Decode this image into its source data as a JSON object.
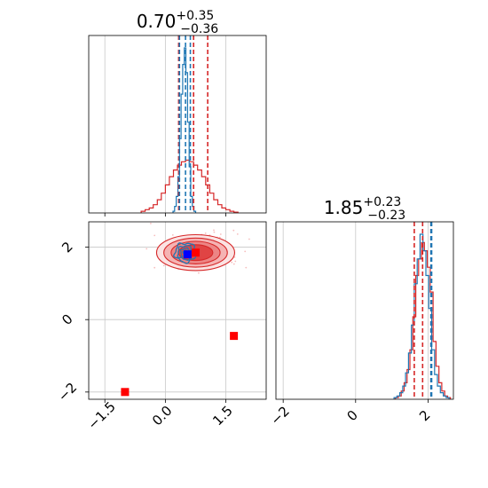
{
  "chart_data": [
    {
      "type": "histogram",
      "panel": "top-left",
      "title": {
        "value": "0.70",
        "plus": "+0.35",
        "minus": "−0.36"
      },
      "xlim": [
        -1.9,
        2.5
      ],
      "xticks": [
        -1.5,
        0.0,
        1.5
      ],
      "x_tick_labels_shown": false,
      "grid": true,
      "series": [
        {
          "color": "#d62728",
          "x": [
            -0.55,
            -0.45,
            -0.35,
            -0.25,
            -0.15,
            -0.05,
            0.05,
            0.15,
            0.25,
            0.35,
            0.45,
            0.55,
            0.65,
            0.75,
            0.85,
            0.95,
            1.05,
            1.15,
            1.25,
            1.35,
            1.45,
            1.55,
            1.65,
            1.75
          ],
          "counts": [
            0.01,
            0.02,
            0.03,
            0.05,
            0.08,
            0.12,
            0.17,
            0.22,
            0.26,
            0.29,
            0.31,
            0.32,
            0.31,
            0.29,
            0.26,
            0.22,
            0.17,
            0.12,
            0.08,
            0.05,
            0.03,
            0.02,
            0.01,
            0.005
          ],
          "quantile_lines": [
            0.33,
            0.7,
            1.05
          ]
        },
        {
          "color": "#1f77b4",
          "x": [
            0.21,
            0.25,
            0.29,
            0.33,
            0.37,
            0.41,
            0.45,
            0.49,
            0.53,
            0.57,
            0.61,
            0.65,
            0.69,
            0.73
          ],
          "counts": [
            0.01,
            0.04,
            0.1,
            0.22,
            0.45,
            0.72,
            0.9,
            1.0,
            0.85,
            0.55,
            0.28,
            0.1,
            0.04,
            0.01
          ],
          "quantile_lines": [
            0.35,
            0.5,
            0.62
          ]
        }
      ]
    },
    {
      "type": "contour-scatter",
      "panel": "bottom-left",
      "xlim": [
        -1.9,
        2.5
      ],
      "ylim": [
        -2.2,
        2.7
      ],
      "xticks": [
        -1.5,
        0.0,
        1.5
      ],
      "xtick_labels": [
        "−1.5",
        "0.0",
        "1.5"
      ],
      "yticks": [
        -2,
        0,
        2
      ],
      "ytick_labels": [
        "−2",
        "0",
        "2"
      ],
      "grid": true,
      "contours": {
        "red": {
          "center": [
            0.75,
            1.85
          ],
          "sigma": [
            0.45,
            0.23
          ],
          "color": "#d62728"
        },
        "blue": {
          "center": [
            0.5,
            1.85
          ],
          "sigma": [
            0.12,
            0.12
          ],
          "color": "#1f77b4"
        }
      },
      "markers": [
        {
          "x": 0.55,
          "y": 1.8,
          "color": "#0000ff",
          "shape": "square"
        },
        {
          "x": 0.75,
          "y": 1.85,
          "color": "#ff0000",
          "shape": "square"
        },
        {
          "x": 1.7,
          "y": -0.45,
          "color": "#ff0000",
          "shape": "square"
        },
        {
          "x": -1.0,
          "y": -2.0,
          "color": "#ff0000",
          "shape": "square"
        }
      ]
    },
    {
      "type": "histogram",
      "panel": "bottom-right",
      "title": {
        "value": "1.85",
        "plus": "+0.23",
        "minus": "−0.23"
      },
      "xlim": [
        -2.2,
        2.7
      ],
      "xticks": [
        -2,
        0,
        2
      ],
      "xtick_labels": [
        "−2",
        "0",
        "2"
      ],
      "grid": true,
      "series": [
        {
          "color": "#d62728",
          "x": [
            1.14,
            1.22,
            1.3,
            1.38,
            1.46,
            1.54,
            1.62,
            1.7,
            1.78,
            1.86,
            1.94,
            2.02,
            2.1,
            2.18,
            2.26,
            2.34,
            2.42,
            2.5,
            2.58
          ],
          "counts": [
            0.01,
            0.02,
            0.05,
            0.1,
            0.18,
            0.3,
            0.5,
            0.75,
            0.85,
            0.95,
            0.9,
            0.8,
            0.65,
            0.35,
            0.2,
            0.1,
            0.05,
            0.02,
            0.01
          ],
          "quantile_lines": [
            1.62,
            1.85,
            2.08
          ]
        },
        {
          "color": "#1f77b4",
          "x": [
            1.1,
            1.18,
            1.26,
            1.34,
            1.42,
            1.5,
            1.58,
            1.66,
            1.74,
            1.82,
            1.9,
            1.98,
            2.06,
            2.14,
            2.22,
            2.3,
            2.38,
            2.46,
            2.54
          ],
          "counts": [
            0.01,
            0.02,
            0.04,
            0.08,
            0.16,
            0.28,
            0.45,
            0.7,
            0.85,
            1.0,
            0.9,
            0.75,
            0.55,
            0.3,
            0.15,
            0.08,
            0.04,
            0.02,
            0.01
          ],
          "quantile_lines": [
            2.08,
            2.1
          ]
        }
      ]
    }
  ]
}
